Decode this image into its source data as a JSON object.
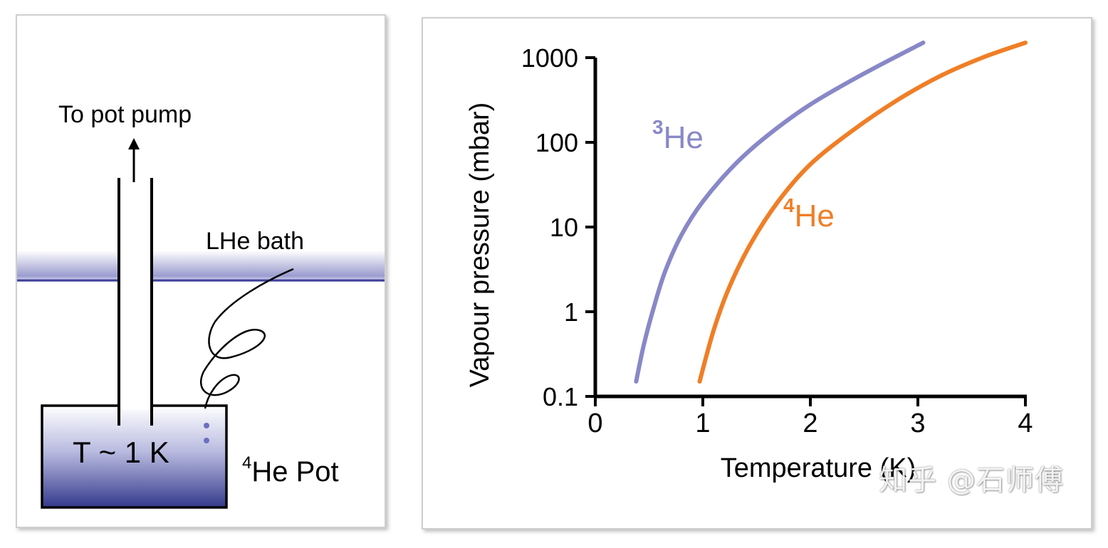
{
  "diagram": {
    "arrow_label": "To pot pump",
    "bath_label": "LHe bath",
    "pot_temperature": "T ~ 1 K",
    "pot_label_sup": "4",
    "pot_label_main": "He Pot",
    "colors": {
      "bath_line": "#3a3f99",
      "pot_gradient_bottom": "#343a8c",
      "bubbles": "#6b70c0"
    }
  },
  "chart_data": {
    "type": "line",
    "xlabel": "Temperature (K)",
    "ylabel": "Vapour pressure (mbar)",
    "xlim": [
      0,
      4
    ],
    "ylim": [
      0.1,
      1000
    ],
    "yscale": "log",
    "xticks": [
      "0",
      "1",
      "2",
      "3",
      "4"
    ],
    "yticks": [
      "0.1",
      "1",
      "10",
      "100",
      "1000"
    ],
    "series": [
      {
        "name": "He",
        "sup": "3",
        "color": "#8888c8",
        "x": [
          0.38,
          0.45,
          0.55,
          0.65,
          0.8,
          1.0,
          1.3,
          1.6,
          2.0,
          2.5,
          3.05
        ],
        "y": [
          0.15,
          0.4,
          1.2,
          3.0,
          8.0,
          20,
          55,
          120,
          280,
          650,
          1500
        ]
      },
      {
        "name": "He",
        "sup": "4",
        "color": "#f07e26",
        "x": [
          0.97,
          1.1,
          1.25,
          1.45,
          1.7,
          2.0,
          2.4,
          2.8,
          3.2,
          3.6,
          4.0
        ],
        "y": [
          0.15,
          0.6,
          2.0,
          6.5,
          20,
          55,
          140,
          310,
          600,
          1000,
          1500
        ]
      }
    ]
  },
  "watermark": "知乎 @石师傅"
}
